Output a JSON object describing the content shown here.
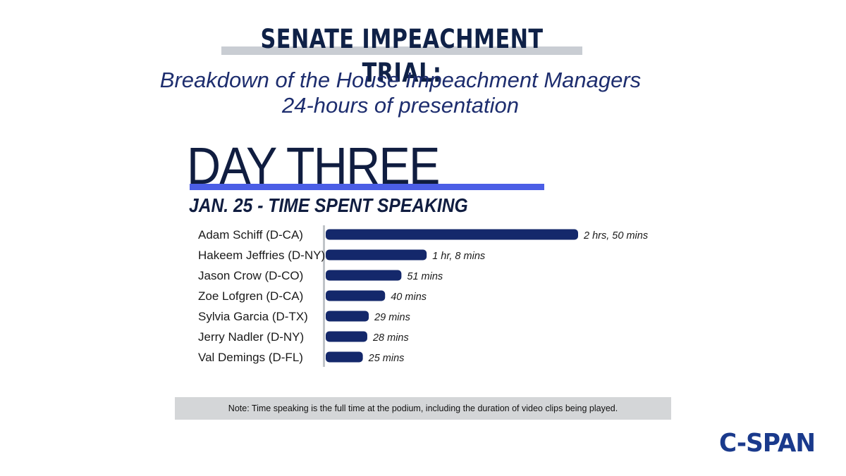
{
  "header": {
    "title": "SENATE IMPEACHMENT TRIAL:",
    "subtitle_line1": "Breakdown of the House Impeachment Managers",
    "subtitle_line2": "24-hours of presentation"
  },
  "day_heading": "DAY THREE",
  "date_heading": "JAN. 25 - TIME SPENT SPEAKING",
  "note": "Note: Time speaking is the full time at the podium, including the duration of video clips being played.",
  "logo_text": "C-SPAN",
  "colors": {
    "title": "#0f2147",
    "subtitle": "#1d2d6e",
    "accent_bar": "#4b5ee6",
    "bar": "#14286b",
    "axis": "#c0c4c8",
    "logo": "#1a3a8c"
  },
  "chart_data": {
    "type": "bar",
    "orientation": "horizontal",
    "categories": [
      "Adam Schiff (D-CA)",
      "Hakeem Jeffries (D-NY)",
      "Jason Crow (D-CO)",
      "Zoe Lofgren (D-CA)",
      "Sylvia Garcia (D-TX)",
      "Jerry Nadler (D-NY)",
      "Val Demings (D-FL)"
    ],
    "values": [
      170,
      68,
      51,
      40,
      29,
      28,
      25
    ],
    "value_unit": "minutes",
    "data_labels": [
      "2 hrs, 50 mins",
      "1 hr, 8 mins",
      "51 mins",
      "40 mins",
      "29 mins",
      "28 mins",
      "25 mins"
    ],
    "title": "JAN. 25 - TIME SPENT SPEAKING",
    "xlabel": "",
    "ylabel": "",
    "grid": false,
    "legend": "none"
  }
}
